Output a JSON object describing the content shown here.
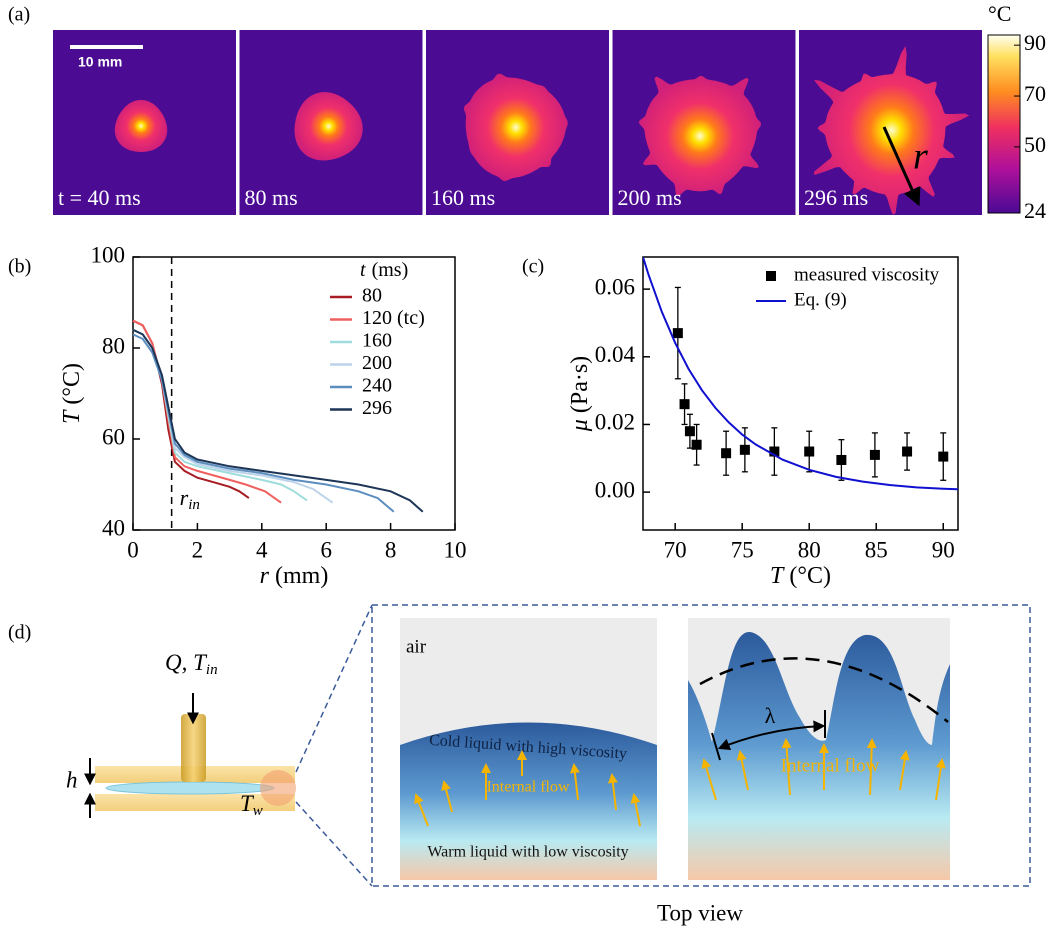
{
  "panel_labels": [
    "(a)",
    "(b)",
    "(c)",
    "(d)"
  ],
  "snapshots": {
    "scale_bar": "10 mm",
    "frames": [
      "t = 40 ms",
      "80 ms",
      "160 ms",
      "200 ms",
      "296 ms"
    ],
    "radius_label": "r",
    "colorbar": {
      "title": "°C",
      "lim": [
        24,
        94
      ],
      "ticks": [
        24,
        50,
        70,
        90
      ]
    }
  },
  "chart_data": [
    {
      "type": "line",
      "xlabel": {
        "symbol": "r",
        "unit": "(mm)"
      },
      "ylabel": {
        "symbol": "T",
        "unit": "(°C)"
      },
      "xlim": [
        0,
        10
      ],
      "ylim": [
        40,
        100
      ],
      "xticks": [
        0,
        2,
        4,
        6,
        8,
        10
      ],
      "yticks": [
        40,
        60,
        80,
        100
      ],
      "vline": 1.2,
      "vline_label": {
        "text": "r",
        "sub": "in"
      },
      "legend": "upper right",
      "legend_title": {
        "symbol": "t",
        "unit": "(ms)"
      },
      "series": [
        {
          "name": "80",
          "color": "#a81c24",
          "x": [
            0,
            0.3,
            0.6,
            0.9,
            1.1,
            1.3,
            1.6,
            2,
            2.5,
            3,
            3.3,
            3.6
          ],
          "values": [
            86,
            85,
            81,
            72,
            62,
            55,
            53,
            51.5,
            50.5,
            49.5,
            48.5,
            47
          ]
        },
        {
          "name": "120 (tc)",
          "color": "#f0605e",
          "x": [
            0,
            0.3,
            0.6,
            0.9,
            1.1,
            1.3,
            1.6,
            2,
            2.5,
            3,
            3.5,
            4.1,
            4.6
          ],
          "values": [
            86,
            85,
            81,
            73,
            64,
            56,
            54,
            53,
            52,
            51,
            50,
            48.5,
            46
          ]
        },
        {
          "name": "160",
          "color": "#9fdcdc",
          "x": [
            0,
            0.3,
            0.6,
            0.9,
            1.1,
            1.3,
            1.6,
            2,
            3,
            4,
            4.6,
            5,
            5.4
          ],
          "values": [
            84,
            83,
            80,
            73,
            65,
            57,
            55,
            54,
            52.5,
            51,
            50,
            48.5,
            46.5
          ]
        },
        {
          "name": "200",
          "color": "#bcd3ea",
          "x": [
            0,
            0.3,
            0.6,
            0.9,
            1.1,
            1.3,
            1.6,
            2,
            3,
            4,
            5,
            5.6,
            6.2
          ],
          "values": [
            84,
            83,
            80,
            73,
            66,
            58,
            56,
            54.5,
            53,
            52,
            50.5,
            49,
            46
          ]
        },
        {
          "name": "240",
          "color": "#5b8dbf",
          "x": [
            0,
            0.3,
            0.6,
            0.9,
            1.1,
            1.3,
            1.6,
            2,
            3,
            4,
            5,
            6,
            7,
            7.6,
            8.1
          ],
          "values": [
            83,
            82,
            79,
            73,
            66,
            59,
            56.5,
            55,
            53.5,
            52.5,
            51,
            50,
            48.5,
            47,
            44
          ]
        },
        {
          "name": "296",
          "color": "#1d3557",
          "x": [
            0,
            0.3,
            0.6,
            0.9,
            1.1,
            1.3,
            1.6,
            2,
            3,
            4,
            5,
            6,
            7,
            8,
            8.6,
            9
          ],
          "values": [
            84,
            83,
            80,
            74,
            67,
            60,
            57,
            55.5,
            54,
            53,
            52,
            51,
            50,
            48.5,
            46.5,
            44
          ]
        }
      ]
    },
    {
      "type": "scatter",
      "xlabel": {
        "symbol": "T",
        "unit": "(°C)"
      },
      "ylabel": {
        "symbol": "μ",
        "unit": "(Pa·s)"
      },
      "xlim": [
        67.6,
        91.1
      ],
      "ylim": [
        -0.0112,
        0.0695
      ],
      "xticks": [
        70,
        75,
        80,
        85,
        90
      ],
      "yticks": [
        {
          "value": 0,
          "label": "0.00"
        },
        0.02,
        0.04,
        0.06
      ],
      "legend": "upper right",
      "series": [
        {
          "name": "measured viscosity",
          "type": "scatter",
          "color": "#000000",
          "x": [
            70.2,
            70.7,
            71.1,
            71.6,
            73.8,
            75.2,
            77.4,
            80.0,
            82.4,
            84.9,
            87.3,
            90.0
          ],
          "values": [
            0.047,
            0.026,
            0.018,
            0.014,
            0.0115,
            0.0125,
            0.012,
            0.012,
            0.0095,
            0.011,
            0.012,
            0.0105
          ],
          "errors": [
            0.0135,
            0.006,
            0.005,
            0.006,
            0.0065,
            0.0065,
            0.007,
            0.006,
            0.006,
            0.0065,
            0.0055,
            0.007
          ]
        },
        {
          "name": "Eq. (9)",
          "type": "line",
          "color": "#1010d0",
          "x": [
            67.6,
            68,
            69,
            70,
            71,
            72,
            73,
            74,
            75,
            76,
            78,
            80,
            82,
            84,
            86,
            88,
            90,
            92
          ],
          "values": [
            0.0695,
            0.0644,
            0.0533,
            0.0441,
            0.0364,
            0.0301,
            0.0249,
            0.0206,
            0.017,
            0.0141,
            0.0096,
            0.0066,
            0.0045,
            0.0031,
            0.0021,
            0.0014,
            0.001,
            0.0007
          ]
        }
      ]
    }
  ],
  "diagram": {
    "source": {
      "text": "Q, T",
      "sub": "in"
    },
    "gap": "h",
    "wall": {
      "text": "T",
      "sub": "w"
    },
    "left_panel": {
      "air": "air",
      "cold": "Cold liquid with high viscosity",
      "flow": "Internal flow",
      "warm": "Warm liquid with low viscosity"
    },
    "right_panel": {
      "wavelength": "λ",
      "flow": "Internal flow"
    },
    "caption": "Top view"
  }
}
